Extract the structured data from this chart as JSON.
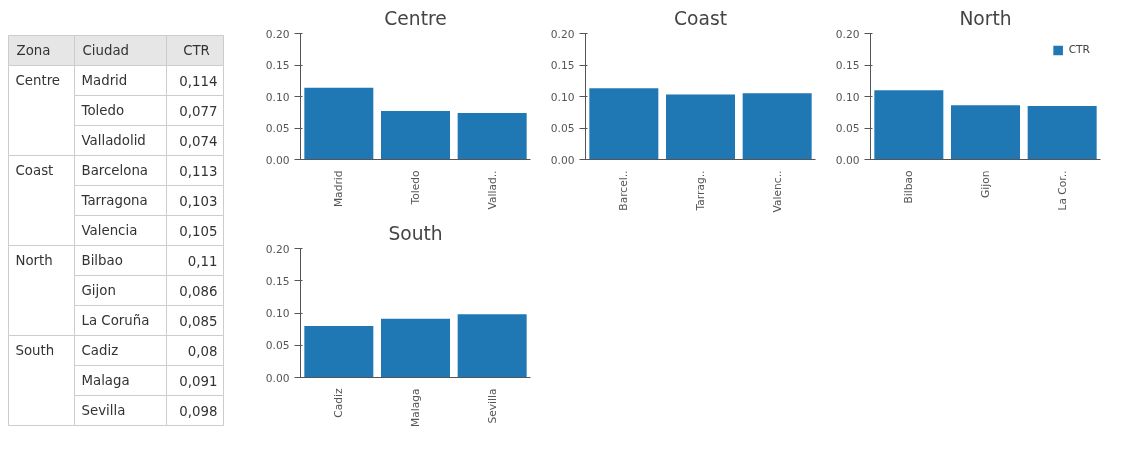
{
  "chart_data": [
    {
      "type": "other",
      "annotations": [
        "Zona",
        "Ciudad",
        "CTR"
      ],
      "y_categories": [
        "Centre",
        "Coast",
        "North",
        "South"
      ],
      "categories": [
        "Madrid",
        "Toledo",
        "Valladolid",
        "Barcelona",
        "Tarragona",
        "Valencia",
        "Bilbao",
        "Gijon",
        "La Coruña",
        "Cadiz",
        "Malaga",
        "Sevilla"
      ],
      "value_labels": [
        "0,114",
        "0,077",
        "0,074",
        "0,113",
        "0,103",
        "0,105",
        "0,11",
        "0,086",
        "0,085",
        "0,08",
        "0,091",
        "0,098"
      ]
    },
    {
      "type": "bar",
      "title": "Centre",
      "categories": [
        "Madrid",
        "Toledo",
        "Vallad.."
      ],
      "ylim": [
        0,
        0.2
      ],
      "yticks": [
        {
          "value": 0,
          "label": "0.00"
        },
        {
          "value": 0.05,
          "label": "0.05"
        },
        {
          "value": 0.1,
          "label": "0.10"
        },
        {
          "value": 0.15,
          "label": "0.15"
        },
        {
          "value": 0.2,
          "label": "0.20"
        }
      ],
      "grid": false,
      "legend": false,
      "series": [
        {
          "color": "#1f77b4",
          "values": [
            0.114,
            0.077,
            0.074
          ]
        }
      ]
    },
    {
      "type": "bar",
      "title": "Coast",
      "categories": [
        "Barcel..",
        "Tarrag..",
        "Valenc.."
      ],
      "ylim": [
        0,
        0.2
      ],
      "yticks": [
        {
          "value": 0,
          "label": "0.00"
        },
        {
          "value": 0.05,
          "label": "0.05"
        },
        {
          "value": 0.1,
          "label": "0.10"
        },
        {
          "value": 0.15,
          "label": "0.15"
        },
        {
          "value": 0.2,
          "label": "0.20"
        }
      ],
      "grid": false,
      "legend": false,
      "series": [
        {
          "color": "#1f77b4",
          "values": [
            0.113,
            0.103,
            0.105
          ]
        }
      ]
    },
    {
      "type": "bar",
      "title": "North",
      "categories": [
        "Bilbao",
        "Gijon",
        "La Cor.."
      ],
      "ylim": [
        0,
        0.2
      ],
      "yticks": [
        {
          "value": 0,
          "label": "0.00"
        },
        {
          "value": 0.05,
          "label": "0.05"
        },
        {
          "value": 0.1,
          "label": "0.10"
        },
        {
          "value": 0.15,
          "label": "0.15"
        },
        {
          "value": 0.2,
          "label": "0.20"
        }
      ],
      "grid": false,
      "legend": "top right",
      "series": [
        {
          "name": "CTR",
          "color": "#1f77b4",
          "values": [
            0.11,
            0.086,
            0.085
          ]
        }
      ]
    },
    {
      "type": "bar",
      "title": "South",
      "categories": [
        "Cadiz",
        "Malaga",
        "Sevilla"
      ],
      "ylim": [
        0,
        0.2
      ],
      "yticks": [
        {
          "value": 0,
          "label": "0.00"
        },
        {
          "value": 0.05,
          "label": "0.05"
        },
        {
          "value": 0.1,
          "label": "0.10"
        },
        {
          "value": 0.15,
          "label": "0.15"
        },
        {
          "value": 0.2,
          "label": "0.20"
        }
      ],
      "grid": false,
      "legend": false,
      "series": [
        {
          "color": "#1f77b4",
          "values": [
            0.08,
            0.091,
            0.098
          ]
        }
      ]
    }
  ]
}
